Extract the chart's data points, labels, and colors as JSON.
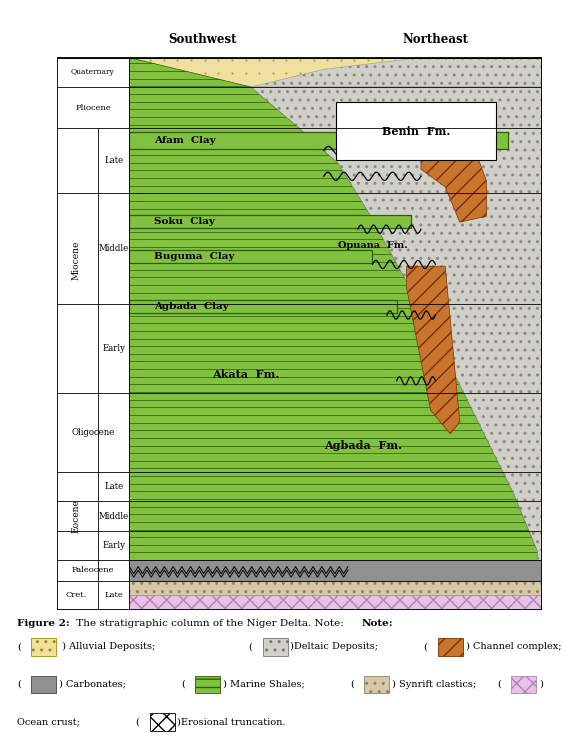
{
  "figure_width": 5.65,
  "figure_height": 7.44,
  "bg_color": "#ffffff",
  "rows": {
    "cret_late": [
      0.0,
      0.5
    ],
    "paleocene": [
      0.5,
      0.85
    ],
    "eoc_early": [
      0.85,
      1.35
    ],
    "eoc_mid": [
      1.35,
      1.85
    ],
    "eoc_late": [
      1.85,
      2.35
    ],
    "oligocene": [
      2.35,
      3.7
    ],
    "mio_early": [
      3.7,
      5.2
    ],
    "mio_mid": [
      5.2,
      7.1
    ],
    "mio_late": [
      7.1,
      8.2
    ],
    "pliocene": [
      8.2,
      8.9
    ],
    "quaternary": [
      8.9,
      9.4
    ]
  },
  "colors": {
    "tan": "#f0e0a0",
    "green": "#82c040",
    "green_dark": "#2a6000",
    "deltaic": "#d0d0c8",
    "channel": "#c87530",
    "channel_dark": "#7a3000",
    "carbonate": "#909090",
    "synrift": "#d8c8a8",
    "ocean": "#e8c0e8",
    "white": "#ffffff",
    "black": "#000000"
  },
  "tan_dot_color": "#a09000",
  "labels": {
    "quaternary": "Quaternary",
    "pliocene": "Pliocene",
    "miocene": "Miocene",
    "oligocene": "Oligocene",
    "eocene": "Eocene",
    "paleocene": "Paleocene",
    "cret": "Cret.",
    "late": "Late",
    "middle": "Middle",
    "early": "Early",
    "southwest": "Southwest",
    "northeast": "Northeast",
    "benin": "Benin  Fm.",
    "afam": "Afam  Clay",
    "soku": "Soku  Clay",
    "buguma": "Buguma  Clay",
    "agbada_clay": "Agbada  Clay",
    "akata": "Akata  Fm.",
    "opuana": "Opuana  Fm.",
    "agbada_fm": "Agbada  Fm."
  },
  "caption_bold": "Figure 2:",
  "caption_note_bold": "Note:",
  "caption_text": " The stratigraphic column of the Niger Delta. ",
  "legend_items": [
    {
      "label": " ) Alluvial Deposits;",
      "fc": "#f0e0a0",
      "hatch": "..",
      "ec": "#a09000"
    },
    {
      "label": ")Deltaic Deposits;",
      "fc": "#d0d0c8",
      "hatch": "..",
      "ec": "#777777"
    },
    {
      "label": ") Channel complex;",
      "fc": "#c87530",
      "hatch": "//",
      "ec": "#7a3000"
    },
    {
      "label": ") Carbonates;",
      "fc": "#909090",
      "hatch": "==",
      "ec": "#444444"
    },
    {
      "label": ") Marine Shales;",
      "fc": "#82c040",
      "hatch": "--",
      "ec": "#2a6000"
    },
    {
      "label": ") Synrift clastics;",
      "fc": "#d8c8a8",
      "hatch": "..",
      "ec": "#888866"
    },
    {
      "label": ") Ocean crust;",
      "fc": "#e8c0e8",
      "hatch": "xx",
      "ec": "#aa88aa"
    },
    {
      "label": ")Erosional truncation.",
      "fc": "#ffffff",
      "hatch": "xx",
      "ec": "#000000"
    }
  ]
}
